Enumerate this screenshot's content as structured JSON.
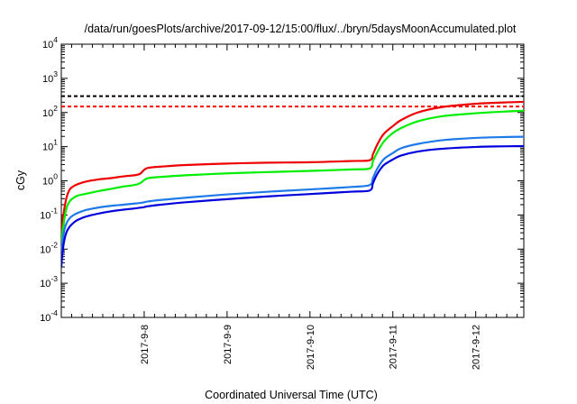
{
  "chart_data": {
    "type": "line",
    "title": "/data/run/goesPlots/archive/2017-09-12/15:00/flux/../bryn/5daysMoonAccumulated.plot",
    "xlabel": "Coordinated Universal Time (UTC)",
    "ylabel": "cGy",
    "yscale": "log",
    "ylim": [
      0.0001,
      10000
    ],
    "xlim": [
      "2017-09-07 01:00",
      "2017-09-12 15:00"
    ],
    "y_ticks": [
      {
        "value": 0.0001,
        "base": "10",
        "exp": "-4"
      },
      {
        "value": 0.001,
        "base": "10",
        "exp": "-3"
      },
      {
        "value": 0.01,
        "base": "10",
        "exp": "-2"
      },
      {
        "value": 0.1,
        "base": "10",
        "exp": "-1"
      },
      {
        "value": 1,
        "base": "10",
        "exp": "0"
      },
      {
        "value": 10,
        "base": "10",
        "exp": "1"
      },
      {
        "value": 100,
        "base": "10",
        "exp": "2"
      },
      {
        "value": 1000,
        "base": "10",
        "exp": "3"
      },
      {
        "value": 10000,
        "base": "10",
        "exp": "4"
      }
    ],
    "x_ticks": [
      {
        "day": 1,
        "label": "2017-9-8"
      },
      {
        "day": 2,
        "label": "2017-9-9"
      },
      {
        "day": 3,
        "label": "2017-9-10"
      },
      {
        "day": 4,
        "label": "2017-9-11"
      },
      {
        "day": 5,
        "label": "2017-9-12"
      }
    ],
    "grid": false,
    "thresholds": [
      {
        "value": 300,
        "color": "#000000",
        "style": "dashed"
      },
      {
        "value": 150,
        "color": "#ff0000",
        "style": "dashed"
      }
    ],
    "series": [
      {
        "color": "#ee0000",
        "x": [
          0.0,
          0.01,
          0.03,
          0.06,
          0.1,
          0.15,
          0.2,
          0.3,
          0.45,
          0.6,
          0.75,
          0.88,
          0.95,
          1.0,
          1.05,
          1.2,
          1.5,
          2.0,
          2.5,
          3.0,
          3.5,
          3.72,
          3.76,
          3.8,
          3.85,
          3.9,
          4.0,
          4.1,
          4.3,
          4.6,
          5.0,
          5.3,
          5.58
        ],
        "y": [
          0.03,
          0.05,
          0.12,
          0.3,
          0.55,
          0.7,
          0.8,
          0.95,
          1.1,
          1.2,
          1.35,
          1.45,
          1.6,
          2.1,
          2.4,
          2.6,
          2.9,
          3.2,
          3.4,
          3.5,
          3.8,
          4.0,
          6.0,
          10,
          17,
          25,
          40,
          60,
          100,
          145,
          180,
          195,
          205
        ]
      },
      {
        "color": "#00ee00",
        "x": [
          0.0,
          0.01,
          0.03,
          0.06,
          0.1,
          0.15,
          0.2,
          0.3,
          0.45,
          0.6,
          0.75,
          0.88,
          0.95,
          1.0,
          1.05,
          1.2,
          1.5,
          2.0,
          2.5,
          3.0,
          3.5,
          3.72,
          3.76,
          3.8,
          3.85,
          3.9,
          4.0,
          4.1,
          4.3,
          4.6,
          5.0,
          5.3,
          5.58
        ],
        "y": [
          0.015,
          0.025,
          0.06,
          0.15,
          0.25,
          0.32,
          0.37,
          0.42,
          0.5,
          0.58,
          0.68,
          0.75,
          0.85,
          1.05,
          1.2,
          1.3,
          1.45,
          1.65,
          1.8,
          1.95,
          2.15,
          2.3,
          3.8,
          6.0,
          10,
          15,
          25,
          35,
          55,
          78,
          95,
          105,
          112
        ]
      },
      {
        "color": "#1e7ae8",
        "x": [
          0.0,
          0.01,
          0.03,
          0.06,
          0.1,
          0.15,
          0.2,
          0.3,
          0.45,
          0.6,
          0.75,
          0.88,
          0.95,
          1.0,
          1.05,
          1.2,
          1.5,
          2.0,
          2.5,
          3.0,
          3.5,
          3.72,
          3.76,
          3.8,
          3.85,
          3.9,
          4.0,
          4.1,
          4.3,
          4.6,
          5.0,
          5.3,
          5.58
        ],
        "y": [
          0.006,
          0.012,
          0.03,
          0.055,
          0.08,
          0.1,
          0.115,
          0.14,
          0.165,
          0.185,
          0.2,
          0.215,
          0.225,
          0.235,
          0.25,
          0.275,
          0.32,
          0.4,
          0.48,
          0.56,
          0.66,
          0.75,
          1.2,
          2.0,
          3.2,
          4.5,
          6.5,
          9.0,
          12,
          15.5,
          18,
          19,
          19.5
        ]
      },
      {
        "color": "#0000dd",
        "x": [
          0.0,
          0.01,
          0.03,
          0.06,
          0.1,
          0.15,
          0.2,
          0.3,
          0.45,
          0.6,
          0.75,
          0.88,
          0.95,
          1.0,
          1.05,
          1.2,
          1.5,
          2.0,
          2.5,
          3.0,
          3.5,
          3.72,
          3.76,
          3.8,
          3.85,
          3.9,
          4.0,
          4.1,
          4.3,
          4.6,
          5.0,
          5.3,
          5.58
        ],
        "y": [
          0.003,
          0.006,
          0.015,
          0.03,
          0.045,
          0.06,
          0.072,
          0.09,
          0.11,
          0.128,
          0.143,
          0.155,
          0.163,
          0.17,
          0.18,
          0.2,
          0.235,
          0.29,
          0.35,
          0.41,
          0.48,
          0.52,
          0.85,
          1.4,
          2.2,
          3.0,
          4.2,
          5.5,
          7.2,
          8.7,
          9.8,
          10.2,
          10.4
        ]
      }
    ]
  }
}
